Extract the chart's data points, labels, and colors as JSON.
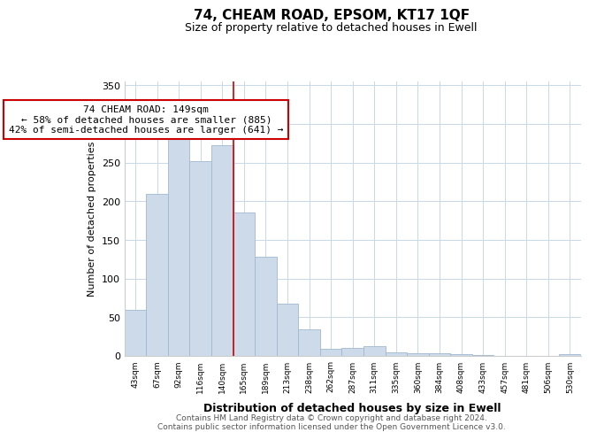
{
  "title": "74, CHEAM ROAD, EPSOM, KT17 1QF",
  "subtitle": "Size of property relative to detached houses in Ewell",
  "xlabel": "Distribution of detached houses by size in Ewell",
  "ylabel": "Number of detached properties",
  "bar_labels": [
    "43sqm",
    "67sqm",
    "92sqm",
    "116sqm",
    "140sqm",
    "165sqm",
    "189sqm",
    "213sqm",
    "238sqm",
    "262sqm",
    "287sqm",
    "311sqm",
    "335sqm",
    "360sqm",
    "384sqm",
    "408sqm",
    "433sqm",
    "457sqm",
    "481sqm",
    "506sqm",
    "530sqm"
  ],
  "bar_values": [
    60,
    210,
    280,
    252,
    272,
    186,
    128,
    68,
    34,
    9,
    10,
    13,
    5,
    4,
    3,
    2,
    1,
    0,
    0,
    0,
    2
  ],
  "bar_face_color": "#ccdaea",
  "bar_edge_color": "#a0b8d0",
  "vline_index": 4,
  "vline_color": "#cc0000",
  "ann_title": "74 CHEAM ROAD: 149sqm",
  "ann_line2": "← 58% of detached houses are smaller (885)",
  "ann_line3": "42% of semi-detached houses are larger (641) →",
  "ylim": [
    0,
    355
  ],
  "yticks": [
    0,
    50,
    100,
    150,
    200,
    250,
    300,
    350
  ],
  "footer_line1": "Contains HM Land Registry data © Crown copyright and database right 2024.",
  "footer_line2": "Contains public sector information licensed under the Open Government Licence v3.0.",
  "background_color": "#ffffff",
  "grid_color": "#c8d8e8",
  "title_fontsize": 11,
  "subtitle_fontsize": 9
}
